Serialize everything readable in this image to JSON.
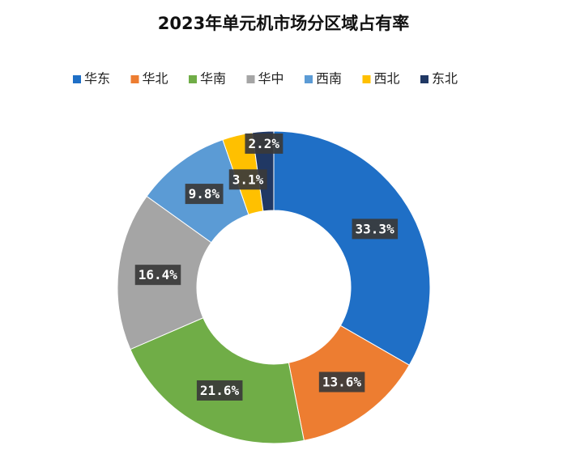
{
  "chart_data": {
    "type": "doughnut",
    "title": "2023年单元机市场分区域占有率",
    "categories": [
      "华东",
      "华北",
      "华南",
      "华中",
      "西南",
      "西北",
      "东北"
    ],
    "values": [
      33.3,
      13.6,
      21.6,
      16.4,
      9.8,
      3.1,
      2.2
    ],
    "value_labels": [
      "33.3%",
      "13.6%",
      "21.6%",
      "16.4%",
      "9.8%",
      "3.1%",
      "2.2%"
    ],
    "colors": [
      "#1f6fc6",
      "#ed7d31",
      "#70ad47",
      "#a5a5a5",
      "#5b9bd5",
      "#ffc000",
      "#203864"
    ],
    "legend": "top"
  }
}
